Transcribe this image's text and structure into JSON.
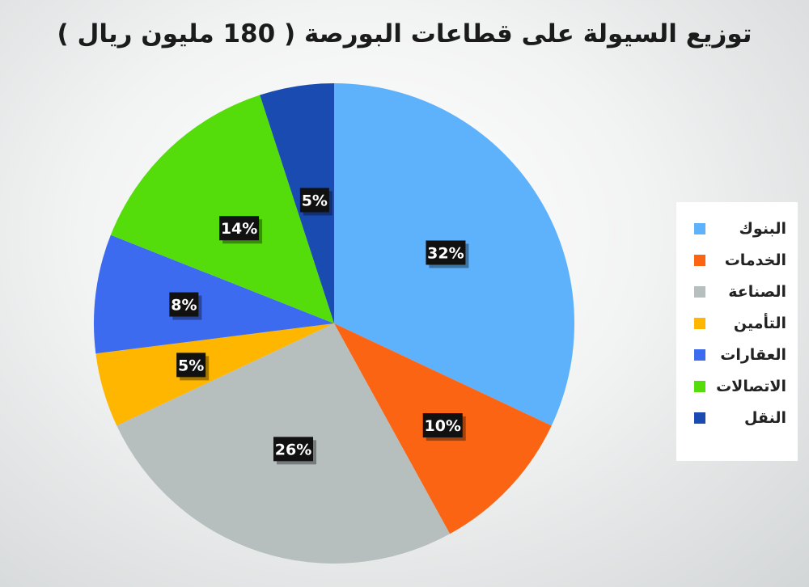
{
  "title": "توزيع السيولة على قطاعات البورصة ( 180 مليون ريال )",
  "chart_data": {
    "type": "pie",
    "title": "توزيع السيولة على قطاعات البورصة ( 180 مليون ريال )",
    "categories": [
      "البنوك",
      "الخدمات",
      "الصناعة",
      "التأمين",
      "العقارات",
      "الاتصالات",
      "النقل"
    ],
    "values": [
      32,
      10,
      26,
      5,
      8,
      14,
      5
    ],
    "value_labels": [
      "32%",
      "10%",
      "26%",
      "5%",
      "8%",
      "14%",
      "5%"
    ],
    "colors": [
      "#5eb1fb",
      "#fb6413",
      "#b6bebe",
      "#feb601",
      "#3c6bf0",
      "#55dc0b",
      "#1a4bb1"
    ],
    "start_angle": "top",
    "direction": "clockwise",
    "legend_position": "right"
  }
}
